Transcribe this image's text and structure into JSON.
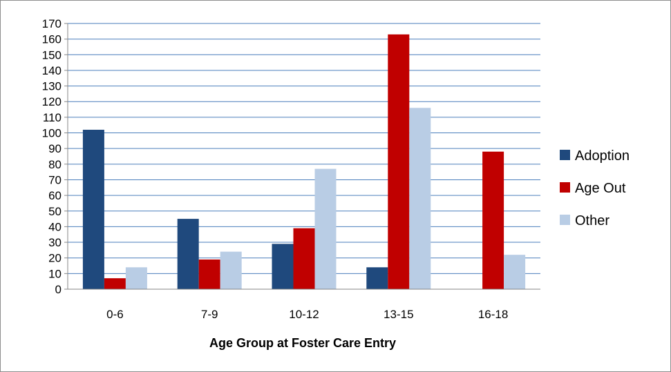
{
  "chart_data": {
    "type": "bar",
    "title": "",
    "xlabel": "Age Group at Foster Care Entry",
    "ylabel": "",
    "categories": [
      "0-6",
      "7-9",
      "10-12",
      "13-15",
      "16-18"
    ],
    "series": [
      {
        "name": "Adoption",
        "color": "#1f497d",
        "values": [
          102,
          45,
          29,
          14,
          0
        ]
      },
      {
        "name": "Age Out",
        "color": "#c00000",
        "values": [
          7,
          19,
          39,
          163,
          88
        ]
      },
      {
        "name": "Other",
        "color": "#b9cde5",
        "values": [
          14,
          24,
          77,
          116,
          22
        ]
      }
    ],
    "ylim": [
      0,
      170
    ],
    "y_ticks": [
      0,
      10,
      20,
      30,
      40,
      50,
      60,
      70,
      80,
      90,
      100,
      110,
      120,
      130,
      140,
      150,
      160,
      170
    ],
    "grid": true,
    "legend_position": "right",
    "gridline_color": "#4a7ebb"
  }
}
